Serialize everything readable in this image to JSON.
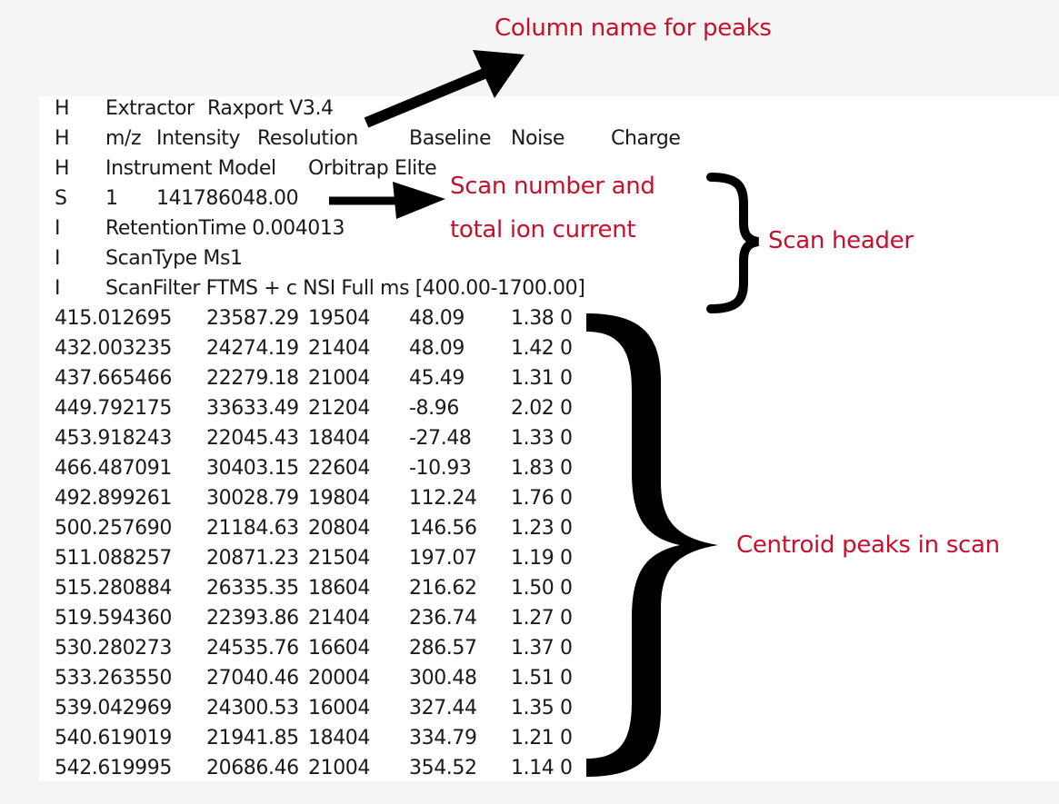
{
  "annotations": {
    "column_name": "Column name for peaks",
    "scan_number_line1": "Scan  number and",
    "scan_number_line2": "total ion current",
    "scan_header": "Scan header",
    "centroid_peaks": "Centroid peaks in scan",
    "color": "#c8102e"
  },
  "header_lines": [
    {
      "tag": "H",
      "fields": [
        "Extractor",
        "Raxport V3.4"
      ]
    },
    {
      "tag": "H",
      "fields": [
        "m/z",
        "Intensity",
        "Resolution",
        "Baseline",
        "Noise",
        "Charge"
      ]
    },
    {
      "tag": "H",
      "fields": [
        "Instrument Model",
        "Orbitrap Elite"
      ]
    },
    {
      "tag": "S",
      "fields": [
        "1",
        "141786048.00"
      ]
    },
    {
      "tag": "I",
      "fields": [
        "RetentionTime 0.004013"
      ]
    },
    {
      "tag": "I",
      "fields": [
        "ScanType Ms1"
      ]
    },
    {
      "tag": "I",
      "fields": [
        "ScanFilter FTMS + c NSI Full ms [400.00-1700.00]"
      ]
    }
  ],
  "peaks": [
    [
      "415.012695",
      "23587.29",
      "19504",
      "48.09",
      "1.38",
      "0"
    ],
    [
      "432.003235",
      "24274.19",
      "21404",
      "48.09",
      "1.42",
      "0"
    ],
    [
      "437.665466",
      "22279.18",
      "21004",
      "45.49",
      "1.31",
      "0"
    ],
    [
      "449.792175",
      "33633.49",
      "21204",
      "-8.96",
      "2.02",
      "0"
    ],
    [
      "453.918243",
      "22045.43",
      "18404",
      "-27.48",
      "1.33",
      "0"
    ],
    [
      "466.487091",
      "30403.15",
      "22604",
      "-10.93",
      "1.83",
      "0"
    ],
    [
      "492.899261",
      "30028.79",
      "19804",
      "112.24",
      "1.76",
      "0"
    ],
    [
      "500.257690",
      "21184.63",
      "20804",
      "146.56",
      "1.23",
      "0"
    ],
    [
      "511.088257",
      "20871.23",
      "21504",
      "197.07",
      "1.19",
      "0"
    ],
    [
      "515.280884",
      "26335.35",
      "18604",
      "216.62",
      "1.50",
      "0"
    ],
    [
      "519.594360",
      "22393.86",
      "21404",
      "236.74",
      "1.27",
      "0"
    ],
    [
      "530.280273",
      "24535.76",
      "16604",
      "286.57",
      "1.37",
      "0"
    ],
    [
      "533.263550",
      "27040.46",
      "20004",
      "300.48",
      "1.51",
      "0"
    ],
    [
      "539.042969",
      "24300.53",
      "16004",
      "327.44",
      "1.35",
      "0"
    ],
    [
      "540.619019",
      "21941.85",
      "18404",
      "334.79",
      "1.21",
      "0"
    ],
    [
      "542.619995",
      "20686.46",
      "21004",
      "354.52",
      "1.14",
      "0"
    ]
  ]
}
